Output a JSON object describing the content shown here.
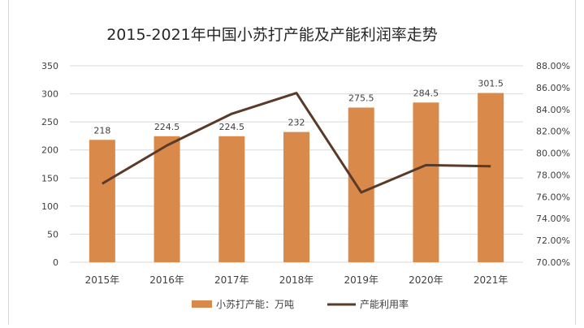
{
  "chart_data": {
    "type": "bar",
    "title": "2015-2021年中国小苏打产能及产能利润率走势",
    "categories": [
      "2015年",
      "2016年",
      "2017年",
      "2018年",
      "2019年",
      "2020年",
      "2021年"
    ],
    "series": [
      {
        "name": "小苏打产能：万吨",
        "type": "bar",
        "axis": "left",
        "values": [
          218,
          224.5,
          224.5,
          232,
          275.5,
          284.5,
          301.5
        ],
        "data_labels": [
          "218",
          "224.5",
          "224.5",
          "232",
          "275.5",
          "284.5",
          "301.5"
        ]
      },
      {
        "name": "产能利用率",
        "type": "line",
        "axis": "right",
        "values": [
          77.2,
          80.7,
          83.6,
          85.5,
          76.4,
          78.9,
          78.8
        ]
      }
    ],
    "left_axis": {
      "min": 0,
      "max": 350,
      "step": 50
    },
    "right_axis": {
      "min": 70,
      "max": 88,
      "step": 2,
      "suffix": "%",
      "decimals": 2
    },
    "legend_position": "bottom",
    "gridlines": true,
    "colors": {
      "bar": "#d9894a",
      "line": "#5a3a28",
      "grid": "#d9d9d9",
      "text": "#404040",
      "title": "#262626"
    }
  }
}
